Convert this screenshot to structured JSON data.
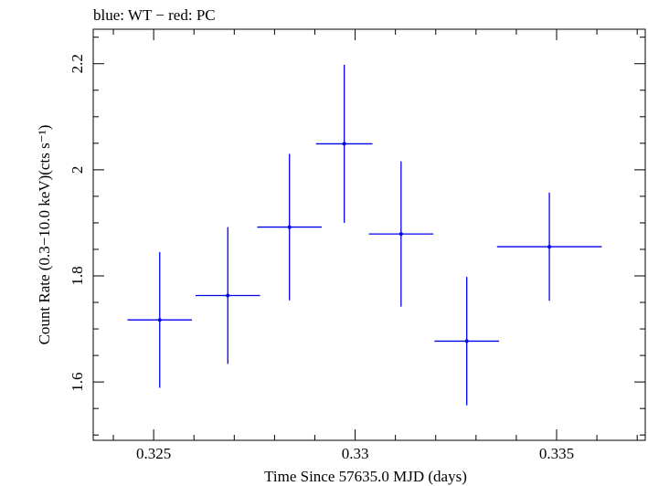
{
  "chart_data": {
    "type": "scatter",
    "title": "blue: WT − red: PC",
    "xlabel": "Time Since 57635.0 MJD (days)",
    "ylabel": "Count Rate (0.3−10.0 keV)(cts s⁻¹)",
    "xlim": [
      0.3235,
      0.3372
    ],
    "ylim": [
      1.49,
      2.265
    ],
    "x_ticks": [
      0.325,
      0.33,
      0.335
    ],
    "x_tick_labels": [
      "0.325",
      "0.33",
      "0.335"
    ],
    "y_ticks": [
      1.6,
      1.8,
      2.0,
      2.2
    ],
    "y_tick_labels": [
      "1.6",
      "1.8",
      "2",
      "2.2"
    ],
    "grid": false,
    "series": [
      {
        "name": "WT",
        "color": "#0000ee",
        "points": [
          {
            "x": 0.32515,
            "xerr": 0.0008,
            "y": 1.717,
            "yerr": 0.128
          },
          {
            "x": 0.32684,
            "xerr": 0.0008,
            "y": 1.763,
            "yerr": 0.129
          },
          {
            "x": 0.32837,
            "xerr": 0.0008,
            "y": 1.892,
            "yerr": 0.138
          },
          {
            "x": 0.32973,
            "xerr": 0.0007,
            "y": 2.049,
            "yerr": 0.149
          },
          {
            "x": 0.33114,
            "xerr": 0.0008,
            "y": 1.879,
            "yerr": 0.137
          },
          {
            "x": 0.33277,
            "xerr": 0.0008,
            "y": 1.677,
            "yerr": 0.121
          },
          {
            "x": 0.33482,
            "xerr": 0.0013,
            "y": 1.855,
            "yerr": 0.102
          }
        ]
      }
    ]
  }
}
